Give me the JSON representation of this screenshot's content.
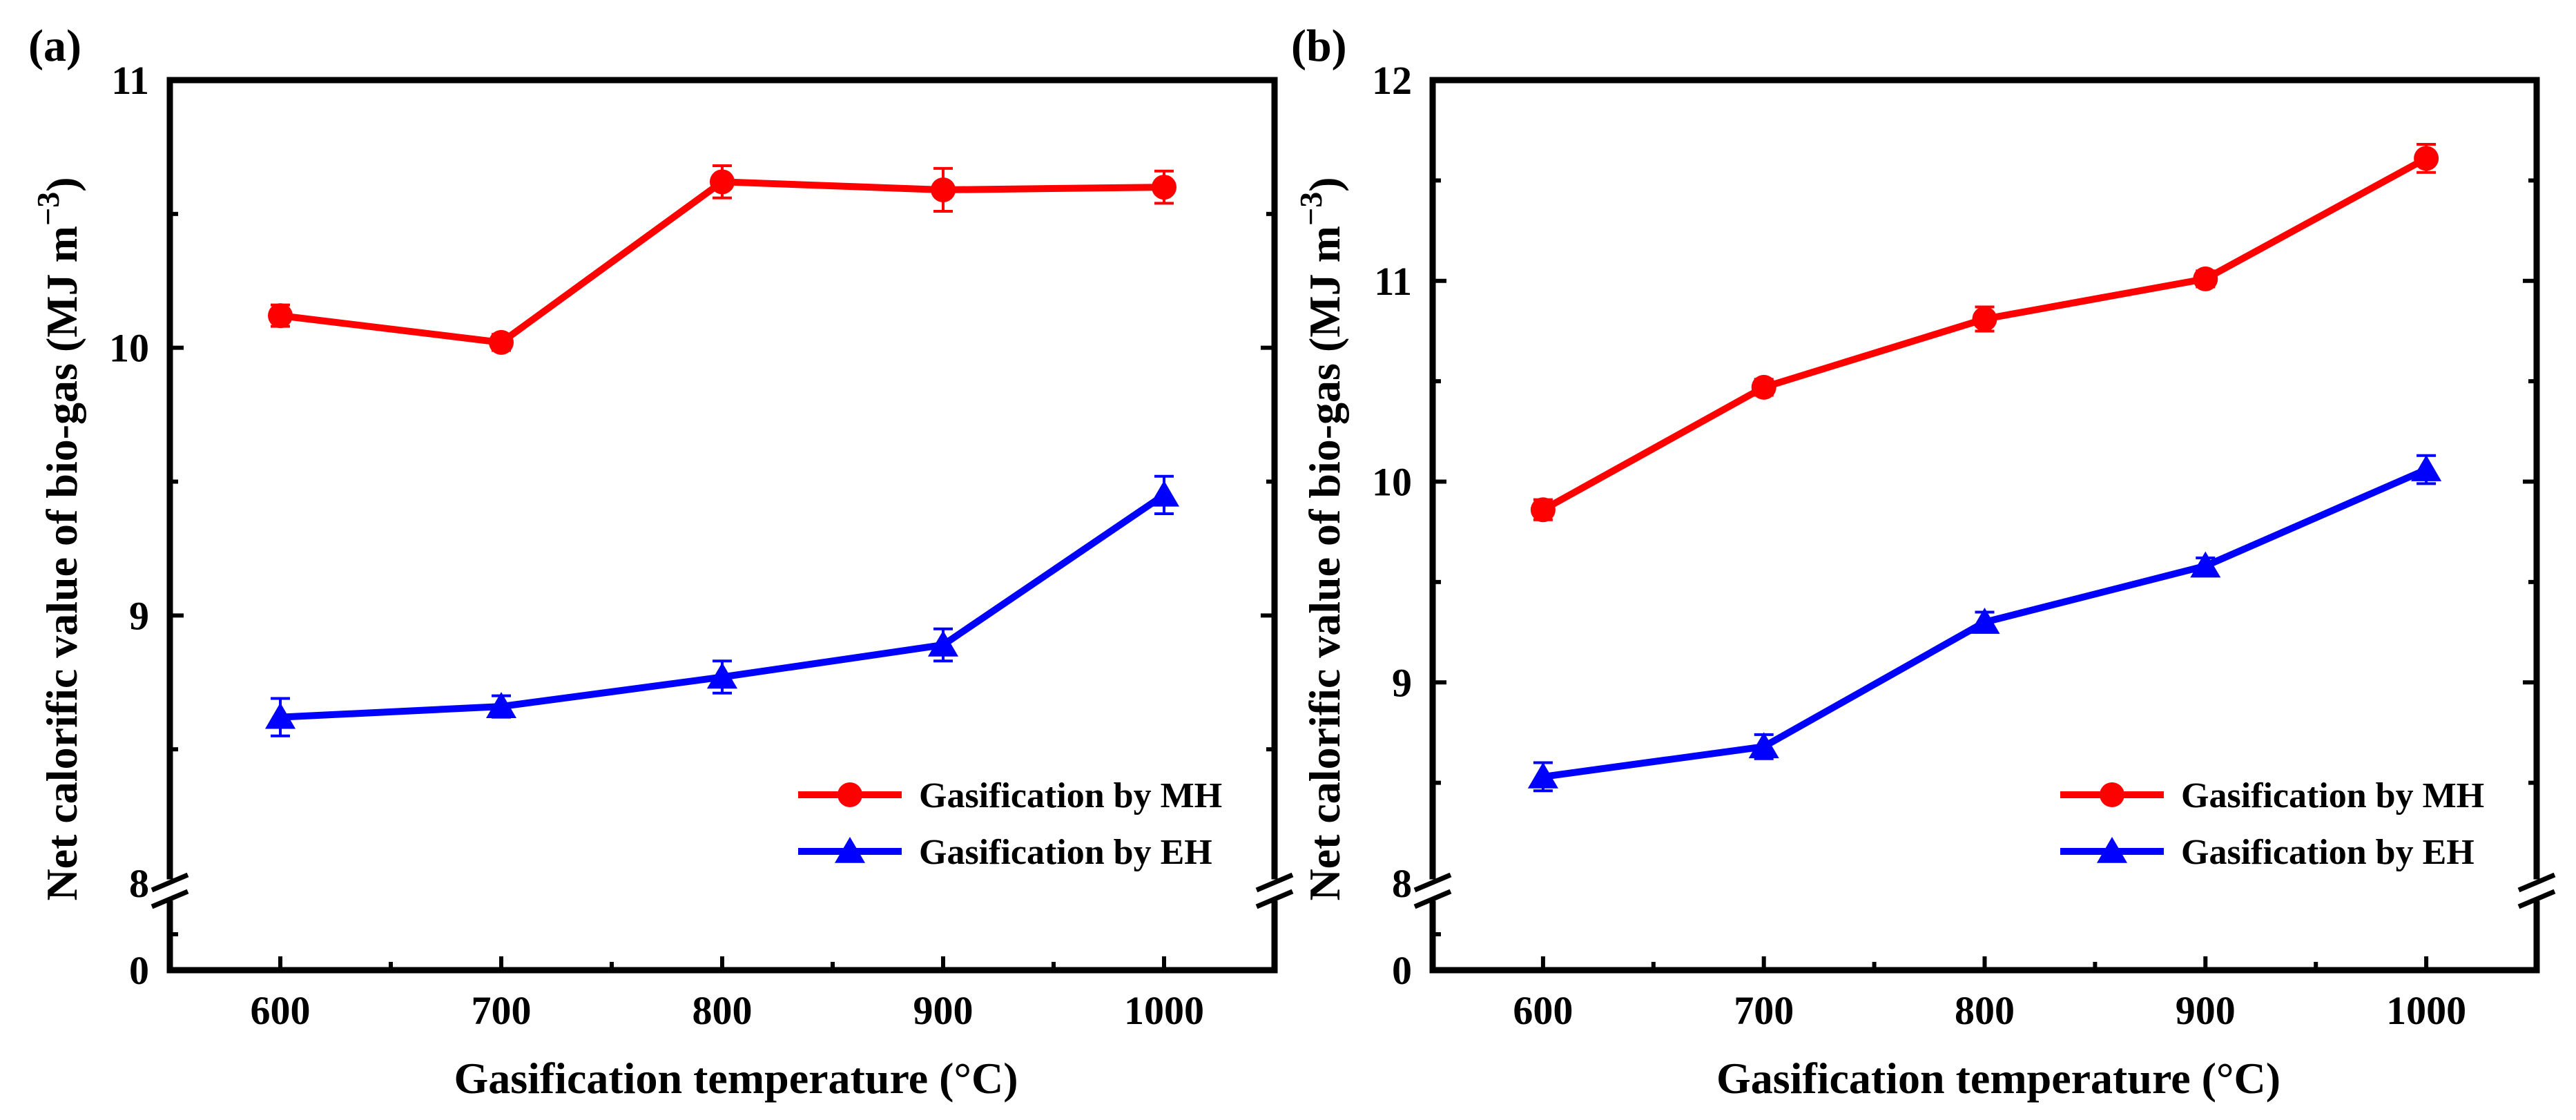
{
  "figure": {
    "panels": [
      "(a)",
      "(b)"
    ]
  },
  "chart_data": [
    {
      "type": "line",
      "panel_label": "(a)",
      "xlabel": "Gasification temperature (°C)",
      "ylabel": "Net calorific value of bio-gas (MJ m",
      "ylabel_exp": "−3",
      "ylabel_close": ")",
      "x": [
        600,
        700,
        800,
        900,
        1000
      ],
      "x_ticks": [
        "600",
        "700",
        "800",
        "900",
        "1000"
      ],
      "xlim": [
        550,
        1050
      ],
      "ylim_upper": [
        8,
        11
      ],
      "upper_ticks": [
        "8",
        "9",
        "10",
        "11"
      ],
      "lower_tick": "0",
      "axis_break": "8",
      "series": [
        {
          "name": "Gasification by MH",
          "color": "#ff0000",
          "marker": "circle",
          "values": [
            10.12,
            10.02,
            10.62,
            10.59,
            10.6
          ],
          "errors": [
            0.04,
            0.03,
            0.06,
            0.08,
            0.06
          ]
        },
        {
          "name": "Gasification by EH",
          "color": "#0000ff",
          "marker": "triangle",
          "values": [
            8.62,
            8.66,
            8.77,
            8.89,
            9.45
          ],
          "errors": [
            0.07,
            0.04,
            0.06,
            0.06,
            0.07
          ]
        }
      ],
      "legend_position": "bottom-right"
    },
    {
      "type": "line",
      "panel_label": "(b)",
      "xlabel": "Gasification temperature (°C)",
      "ylabel": "Net calorific value of bio-gas (MJ m",
      "ylabel_exp": "−3",
      "ylabel_close": ")",
      "x": [
        600,
        700,
        800,
        900,
        1000
      ],
      "x_ticks": [
        "600",
        "700",
        "800",
        "900",
        "1000"
      ],
      "xlim": [
        550,
        1050
      ],
      "ylim_upper": [
        8,
        12
      ],
      "upper_ticks": [
        "8",
        "9",
        "10",
        "11",
        "12"
      ],
      "lower_tick": "0",
      "axis_break": "8",
      "series": [
        {
          "name": "Gasification by MH",
          "color": "#ff0000",
          "marker": "circle",
          "values": [
            9.86,
            10.47,
            10.81,
            11.01,
            11.61
          ],
          "errors": [
            0.05,
            0.04,
            0.06,
            0.04,
            0.07
          ]
        },
        {
          "name": "Gasification by EH",
          "color": "#0000ff",
          "marker": "triangle",
          "values": [
            8.53,
            8.68,
            9.3,
            9.58,
            10.06
          ],
          "errors": [
            0.07,
            0.06,
            0.05,
            0.04,
            0.07
          ]
        }
      ],
      "legend_position": "bottom-right"
    }
  ]
}
